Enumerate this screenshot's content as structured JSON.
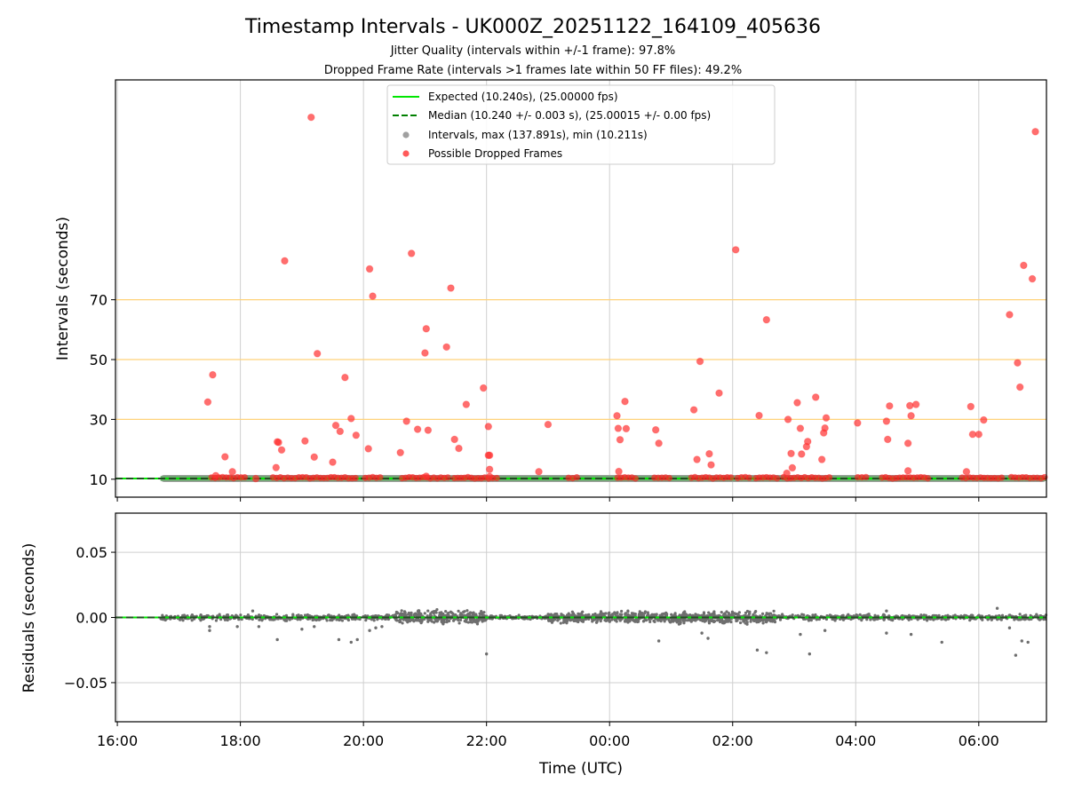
{
  "chart_data": {
    "type": "scatter",
    "title": "Timestamp Intervals - UK000Z_20251122_164109_405636",
    "subtitles": [
      "Jitter Quality (intervals within +/-1 frame): 97.8%",
      "Dropped Frame Rate (intervals >1 frames late within 50 FF files): 49.2%"
    ],
    "xlabel": "Time (UTC)",
    "x_units": "hours since 16:00 UTC on 2025-11-22",
    "x_range": [
      -0.03,
      15.1
    ],
    "x_ticks": [
      {
        "value": 0,
        "label": "16:00"
      },
      {
        "value": 2,
        "label": "18:00"
      },
      {
        "value": 4,
        "label": "20:00"
      },
      {
        "value": 6,
        "label": "22:00"
      },
      {
        "value": 8,
        "label": "00:00"
      },
      {
        "value": 10,
        "label": "02:00"
      },
      {
        "value": 12,
        "label": "04:00"
      },
      {
        "value": 14,
        "label": "06:00"
      }
    ],
    "top_panel": {
      "ylabel": "Intervals (seconds)",
      "ylim": [
        4,
        143.5
      ],
      "y_ticks": [
        10,
        30,
        50,
        70
      ],
      "threshold_lines": [
        30,
        50,
        70
      ],
      "legend": [
        {
          "label": "Expected (10.240s), (25.00000 fps)",
          "kind": "line",
          "color": "#00e600"
        },
        {
          "label": "Median (10.240 +/- 0.003 s), (25.00015 +/- 0.00 fps)",
          "kind": "dashed",
          "color": "#008000"
        },
        {
          "label": "Intervals, max (137.891s), min (10.211s)",
          "kind": "marker",
          "color": "#a0a0a0"
        },
        {
          "label": "Possible Dropped Frames",
          "kind": "marker",
          "color": "#ff5a5a"
        }
      ],
      "expected_interval": 10.24,
      "median_interval": 10.24,
      "interval_series_x_range": [
        0.7,
        15.1
      ],
      "baseline_dropped_segments": [
        [
          1.5,
          2.1
        ],
        [
          2.5,
          3.1
        ],
        [
          3.1,
          3.9
        ],
        [
          4.0,
          4.3
        ],
        [
          4.6,
          5.4
        ],
        [
          5.45,
          6.0
        ],
        [
          6.0,
          6.2
        ],
        [
          7.3,
          7.5
        ],
        [
          8.1,
          8.45
        ],
        [
          8.7,
          9.0
        ],
        [
          9.3,
          10.0
        ],
        [
          10.05,
          10.3
        ],
        [
          10.35,
          10.75
        ],
        [
          10.8,
          11.6
        ],
        [
          12.0,
          12.2
        ],
        [
          12.4,
          13.2
        ],
        [
          13.7,
          14.0
        ],
        [
          14.0,
          14.4
        ],
        [
          14.5,
          15.1
        ]
      ],
      "dropped_frames": [
        [
          1.47,
          35.8
        ],
        [
          1.55,
          44.9
        ],
        [
          1.6,
          11.2
        ],
        [
          1.75,
          17.5
        ],
        [
          1.87,
          12.5
        ],
        [
          2.25,
          10.2
        ],
        [
          2.58,
          13.9
        ],
        [
          2.6,
          22.5
        ],
        [
          2.62,
          22.3
        ],
        [
          2.67,
          19.8
        ],
        [
          2.72,
          83.0
        ],
        [
          3.05,
          22.8
        ],
        [
          3.15,
          131.0
        ],
        [
          3.2,
          17.4
        ],
        [
          3.25,
          52.0
        ],
        [
          3.5,
          15.7
        ],
        [
          3.55,
          28.0
        ],
        [
          3.62,
          26.0
        ],
        [
          3.7,
          44.0
        ],
        [
          3.8,
          30.3
        ],
        [
          3.88,
          24.7
        ],
        [
          4.08,
          20.2
        ],
        [
          4.1,
          80.3
        ],
        [
          4.15,
          71.2
        ],
        [
          4.6,
          18.9
        ],
        [
          4.7,
          29.4
        ],
        [
          4.78,
          85.5
        ],
        [
          4.88,
          26.7
        ],
        [
          5.0,
          52.2
        ],
        [
          5.02,
          60.3
        ],
        [
          5.05,
          26.4
        ],
        [
          5.02,
          11.0
        ],
        [
          5.35,
          54.2
        ],
        [
          5.42,
          73.9
        ],
        [
          5.48,
          23.3
        ],
        [
          5.55,
          20.3
        ],
        [
          5.67,
          35.0
        ],
        [
          5.95,
          40.5
        ],
        [
          6.03,
          27.6
        ],
        [
          6.03,
          18.0
        ],
        [
          6.05,
          18.0
        ],
        [
          6.05,
          13.3
        ],
        [
          6.05,
          10.9
        ],
        [
          6.85,
          12.5
        ],
        [
          7.0,
          28.3
        ],
        [
          8.12,
          31.2
        ],
        [
          8.14,
          27.0
        ],
        [
          8.15,
          12.6
        ],
        [
          8.17,
          23.2
        ],
        [
          8.25,
          36.0
        ],
        [
          8.27,
          26.9
        ],
        [
          8.75,
          26.5
        ],
        [
          8.8,
          22.0
        ],
        [
          9.37,
          33.2
        ],
        [
          9.42,
          16.6
        ],
        [
          9.47,
          49.4
        ],
        [
          9.62,
          18.5
        ],
        [
          9.65,
          14.8
        ],
        [
          9.78,
          38.8
        ],
        [
          10.05,
          86.7
        ],
        [
          10.43,
          31.3
        ],
        [
          10.55,
          63.3
        ],
        [
          10.88,
          12.0
        ],
        [
          10.9,
          30.0
        ],
        [
          10.95,
          18.6
        ],
        [
          10.97,
          13.8
        ],
        [
          11.05,
          35.6
        ],
        [
          11.1,
          27.0
        ],
        [
          11.12,
          18.4
        ],
        [
          11.2,
          20.9
        ],
        [
          11.22,
          22.6
        ],
        [
          11.35,
          37.4
        ],
        [
          11.45,
          16.6
        ],
        [
          11.48,
          25.5
        ],
        [
          11.5,
          27.1
        ],
        [
          11.52,
          30.5
        ],
        [
          12.03,
          28.8
        ],
        [
          12.5,
          29.4
        ],
        [
          12.52,
          23.3
        ],
        [
          12.55,
          34.5
        ],
        [
          12.85,
          22.0
        ],
        [
          12.88,
          34.6
        ],
        [
          12.9,
          31.2
        ],
        [
          12.98,
          35.0
        ],
        [
          12.85,
          12.8
        ],
        [
          13.8,
          12.5
        ],
        [
          13.87,
          34.3
        ],
        [
          13.9,
          25.0
        ],
        [
          14.0,
          25.0
        ],
        [
          14.08,
          29.8
        ],
        [
          14.5,
          65.0
        ],
        [
          14.63,
          48.9
        ],
        [
          14.67,
          40.8
        ],
        [
          14.73,
          81.5
        ],
        [
          14.87,
          77.0
        ],
        [
          14.92,
          126.2
        ]
      ]
    },
    "bottom_panel": {
      "ylabel": "Residuals (seconds)",
      "ylim": [
        -0.08,
        0.08
      ],
      "y_ticks": [
        {
          "value": 0.05,
          "label": "0.05"
        },
        {
          "value": 0.0,
          "label": "0.00"
        },
        {
          "value": -0.05,
          "label": "−0.05"
        }
      ],
      "residual_bands": [
        {
          "x_range": [
            0.7,
            4.5
          ],
          "spread": 0.003
        },
        {
          "x_range": [
            4.5,
            6.0
          ],
          "spread": 0.007
        },
        {
          "x_range": [
            6.0,
            7.0
          ],
          "spread": 0.002
        },
        {
          "x_range": [
            7.0,
            9.5
          ],
          "spread": 0.006
        },
        {
          "x_range": [
            9.5,
            10.7
          ],
          "spread": 0.006
        },
        {
          "x_range": [
            10.7,
            15.1
          ],
          "spread": 0.003
        }
      ],
      "residual_outliers": [
        [
          1.5,
          -0.007
        ],
        [
          1.5,
          -0.01
        ],
        [
          1.95,
          -0.007
        ],
        [
          2.6,
          -0.017
        ],
        [
          2.3,
          -0.007
        ],
        [
          3.0,
          -0.009
        ],
        [
          3.2,
          -0.007
        ],
        [
          3.6,
          -0.017
        ],
        [
          3.8,
          -0.019
        ],
        [
          3.9,
          -0.017
        ],
        [
          4.1,
          -0.01
        ],
        [
          4.2,
          -0.008
        ],
        [
          4.3,
          -0.007
        ],
        [
          6.0,
          -0.028
        ],
        [
          8.8,
          -0.018
        ],
        [
          9.5,
          -0.012
        ],
        [
          9.6,
          -0.016
        ],
        [
          10.4,
          -0.025
        ],
        [
          10.55,
          -0.027
        ],
        [
          11.1,
          -0.013
        ],
        [
          11.25,
          -0.028
        ],
        [
          11.5,
          -0.01
        ],
        [
          12.5,
          -0.012
        ],
        [
          12.9,
          -0.013
        ],
        [
          13.4,
          -0.019
        ],
        [
          14.6,
          -0.029
        ],
        [
          14.7,
          -0.018
        ],
        [
          14.8,
          -0.019
        ],
        [
          14.5,
          -0.008
        ],
        [
          14.3,
          0.007
        ],
        [
          2.2,
          0.005
        ],
        [
          12.5,
          0.005
        ]
      ]
    }
  }
}
